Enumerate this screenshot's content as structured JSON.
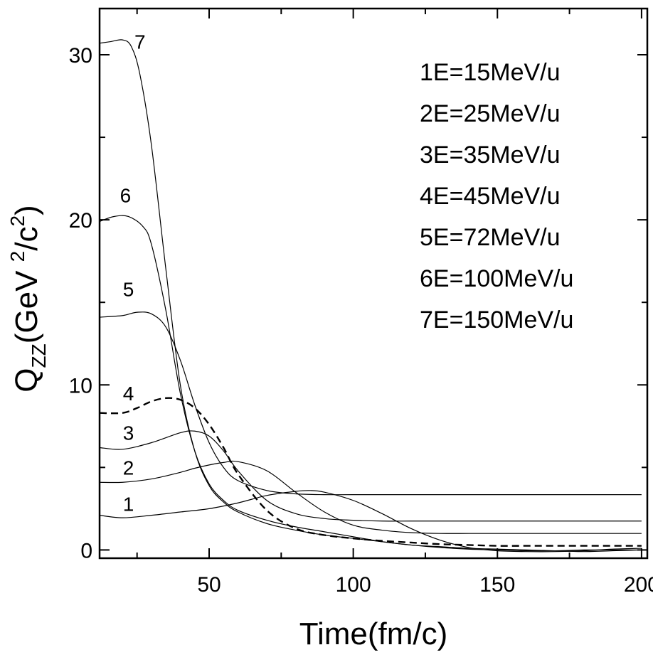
{
  "chart_data": {
    "type": "line",
    "xlabel": "Time(fm/c)",
    "ylabel": {
      "base": "Q",
      "sub": "ZZ",
      "unit_open": "(GeV ",
      "sup1": "2",
      "mid": "/c",
      "sup2": "2",
      "unit_close": ")"
    },
    "xlim": [
      12,
      202
    ],
    "ylim": [
      -0.5,
      32.8
    ],
    "x_ticks": [
      50,
      100,
      150,
      200
    ],
    "x_tick_labels": [
      "50",
      "100",
      "150",
      "200"
    ],
    "x_minor_ticks": [
      25,
      75,
      125,
      175
    ],
    "y_ticks": [
      0,
      10,
      20,
      30
    ],
    "y_tick_labels": [
      "0",
      "10",
      "20",
      "30"
    ],
    "y_minor_ticks": [
      5,
      15,
      25
    ],
    "grid": false,
    "legend_placement": "top-right",
    "legend": [
      "1E=15MeV/u",
      "2E=25MeV/u",
      "3E=35MeV/u",
      "4E=45MeV/u",
      "5E=72MeV/u",
      "6E=100MeV/u",
      "7E=150MeV/u"
    ],
    "series": [
      {
        "label": "1",
        "dashed": false,
        "label_at": [
          22,
          2.8
        ],
        "x": [
          12,
          20,
          30,
          40,
          50,
          60,
          70,
          80,
          85,
          90,
          100,
          110,
          120,
          130,
          140,
          150,
          160,
          170,
          180,
          190,
          200
        ],
        "y": [
          2.1,
          1.95,
          2.1,
          2.3,
          2.5,
          2.85,
          3.3,
          3.55,
          3.6,
          3.5,
          3.0,
          2.2,
          1.3,
          0.6,
          0.15,
          -0.05,
          -0.1,
          -0.1,
          -0.05,
          0.05,
          0.1
        ]
      },
      {
        "label": "2",
        "dashed": false,
        "label_at": [
          22,
          5.0
        ],
        "x": [
          12,
          20,
          30,
          40,
          45,
          50,
          55,
          60,
          70,
          80,
          90,
          100,
          110,
          120,
          130,
          140,
          150,
          160,
          170,
          180,
          190,
          200
        ],
        "y": [
          4.1,
          4.1,
          4.3,
          4.7,
          4.95,
          5.15,
          5.3,
          5.35,
          4.8,
          3.5,
          2.3,
          1.5,
          1.2,
          1.05,
          1.0,
          1.0,
          1.0,
          1.0,
          1.0,
          1.0,
          1.0,
          1.0
        ]
      },
      {
        "label": "3",
        "dashed": false,
        "label_at": [
          22,
          7.1
        ],
        "x": [
          12,
          20,
          30,
          40,
          45,
          50,
          55,
          60,
          70,
          80,
          90,
          100,
          110,
          120,
          130,
          140,
          150,
          160,
          170,
          180,
          190,
          200
        ],
        "y": [
          6.2,
          6.1,
          6.5,
          7.1,
          7.2,
          6.9,
          6.0,
          4.8,
          3.0,
          2.2,
          1.9,
          1.8,
          1.75,
          1.75,
          1.75,
          1.75,
          1.75,
          1.75,
          1.75,
          1.75,
          1.75,
          1.75
        ]
      },
      {
        "label": "4",
        "dashed": true,
        "label_at": [
          22,
          9.5
        ],
        "x": [
          12,
          20,
          25,
          30,
          35,
          40,
          45,
          50,
          55,
          60,
          70,
          80,
          90,
          100,
          110,
          120,
          130,
          140,
          150,
          160,
          170,
          180,
          190,
          200
        ],
        "y": [
          8.3,
          8.3,
          8.6,
          9.0,
          9.2,
          9.1,
          8.6,
          7.6,
          6.2,
          4.6,
          2.4,
          1.3,
          0.9,
          0.7,
          0.55,
          0.45,
          0.35,
          0.3,
          0.25,
          0.25,
          0.25,
          0.25,
          0.25,
          0.25
        ]
      },
      {
        "label": "5",
        "dashed": false,
        "label_at": [
          22,
          15.8
        ],
        "x": [
          12,
          20,
          25,
          30,
          35,
          40,
          45,
          50,
          55,
          60,
          70,
          80,
          90,
          100,
          120,
          140,
          160,
          180,
          200
        ],
        "y": [
          14.1,
          14.2,
          14.4,
          14.3,
          13.5,
          11.5,
          8.8,
          6.5,
          5.0,
          4.2,
          3.6,
          3.4,
          3.35,
          3.35,
          3.35,
          3.35,
          3.35,
          3.35,
          3.35
        ]
      },
      {
        "label": "6",
        "dashed": false,
        "label_at": [
          21,
          21.5
        ],
        "x": [
          12,
          17,
          22,
          27,
          30,
          35,
          40,
          45,
          50,
          55,
          60,
          70,
          80,
          90,
          100,
          110,
          120,
          130,
          140,
          150,
          160,
          170,
          180,
          190,
          200
        ],
        "y": [
          19.9,
          20.2,
          20.2,
          19.6,
          18.5,
          14.5,
          9.5,
          6.0,
          4.0,
          3.0,
          2.4,
          1.8,
          1.4,
          1.1,
          0.8,
          0.5,
          0.3,
          0.15,
          0.05,
          0.0,
          -0.05,
          -0.05,
          0.0,
          0.0,
          0.0
        ]
      },
      {
        "label": "7",
        "dashed": false,
        "label_at": [
          26,
          30.8
        ],
        "x": [
          12,
          16,
          20,
          23,
          26,
          30,
          35,
          40,
          45,
          50,
          55,
          60,
          70,
          80,
          90,
          100,
          110,
          120,
          130,
          140,
          150,
          160,
          170,
          180,
          190,
          200
        ],
        "y": [
          30.7,
          30.8,
          30.9,
          30.5,
          28.8,
          24.5,
          17.0,
          10.0,
          6.0,
          3.9,
          2.9,
          2.3,
          1.6,
          1.2,
          0.9,
          0.7,
          0.5,
          0.3,
          0.2,
          0.1,
          0.05,
          0.0,
          -0.05,
          -0.1,
          -0.05,
          0.0
        ]
      }
    ]
  }
}
